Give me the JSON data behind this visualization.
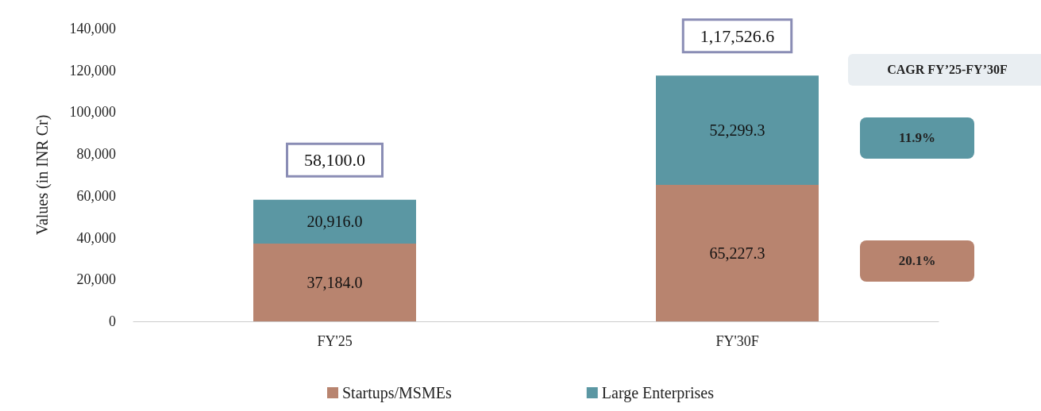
{
  "chart_data": {
    "type": "bar",
    "stacked": true,
    "categories": [
      "FY'25",
      "FY'30F"
    ],
    "series": [
      {
        "name": "Startups/MSMEs",
        "color": "#b8846f",
        "values": [
          37184.0,
          65227.3
        ],
        "value_labels": [
          "37,184.0",
          "65,227.3"
        ]
      },
      {
        "name": "Large Enterprises",
        "color": "#5b97a3",
        "values": [
          20916.0,
          52299.3
        ],
        "value_labels": [
          "20,916.0",
          "52,299.3"
        ]
      }
    ],
    "totals": [
      "58,100.0",
      "1,17,526.6"
    ],
    "ylabel": "Values (in INR Cr)",
    "ylim": [
      0,
      140000
    ],
    "yticks": [
      0,
      {
        "value": 20000,
        "label": "20,000"
      },
      {
        "value": 40000,
        "label": "40,000"
      },
      {
        "value": 60000,
        "label": "60,000"
      },
      {
        "value": 80000,
        "label": "80,000"
      },
      {
        "value": 100000,
        "label": "100,000"
      },
      {
        "value": 120000,
        "label": "120,000"
      },
      {
        "value": 140000,
        "label": "140,000"
      }
    ],
    "annotations": [
      "CAGR FY’25-FY’30F",
      "11.9%",
      "20.1%"
    ],
    "grid": false,
    "legend": "bottom"
  }
}
